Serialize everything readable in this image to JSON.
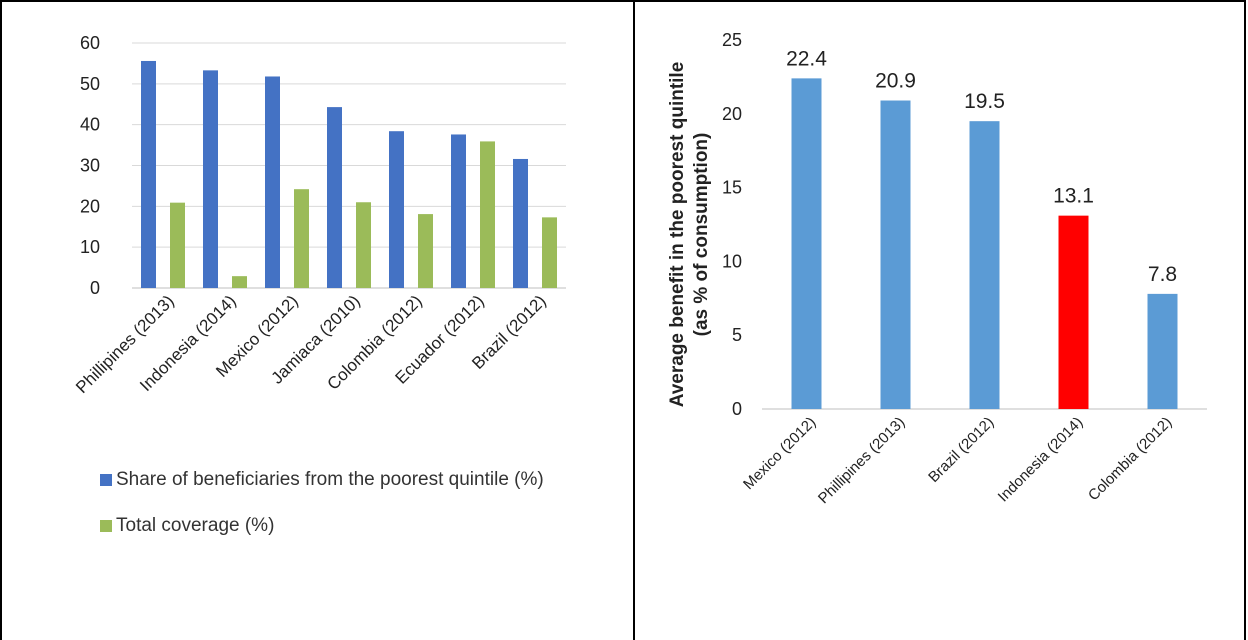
{
  "chart_data": [
    {
      "type": "bar",
      "categories": [
        "Phillipines (2013)",
        "Indonesia (2014)",
        "Mexico (2012)",
        "Jamiaca (2010)",
        "Colombia (2012)",
        "Ecuador (2012)",
        "Brazil (2012)"
      ],
      "series": [
        {
          "name": "Share of beneficiaries from the poorest quintile (%)",
          "color": "#4472c4",
          "values": [
            55.6,
            53.3,
            51.8,
            44.3,
            38.4,
            37.6,
            31.6
          ]
        },
        {
          "name": "Total coverage (%)",
          "color": "#9bbb59",
          "values": [
            20.9,
            2.9,
            24.2,
            21.0,
            18.1,
            35.9,
            17.3
          ]
        }
      ],
      "ylim": [
        0,
        60
      ],
      "yticks": [
        "0",
        "10",
        "20",
        "30",
        "40",
        "50",
        "60"
      ],
      "grid": true,
      "legend_position": "bottom"
    },
    {
      "type": "bar",
      "categories": [
        "Mexico (2012)",
        "Phillipines (2013)",
        "Brazil (2012)",
        "Indonesia (2014)",
        "Colombia (2012)"
      ],
      "values": [
        22.4,
        20.9,
        19.5,
        13.1,
        7.8
      ],
      "data_labels": [
        "22.4",
        "20.9",
        "19.5",
        "13.1",
        "7.8"
      ],
      "colors": [
        "#5b9bd5",
        "#5b9bd5",
        "#5b9bd5",
        "#ff0000",
        "#5b9bd5"
      ],
      "ylabel_line1": "Average benefit in the poorest quintile",
      "ylabel_line2": "(as % of consumption)",
      "ylim": [
        0,
        25
      ],
      "yticks": [
        "0",
        "5",
        "10",
        "15",
        "20",
        "25"
      ],
      "grid": false
    }
  ]
}
